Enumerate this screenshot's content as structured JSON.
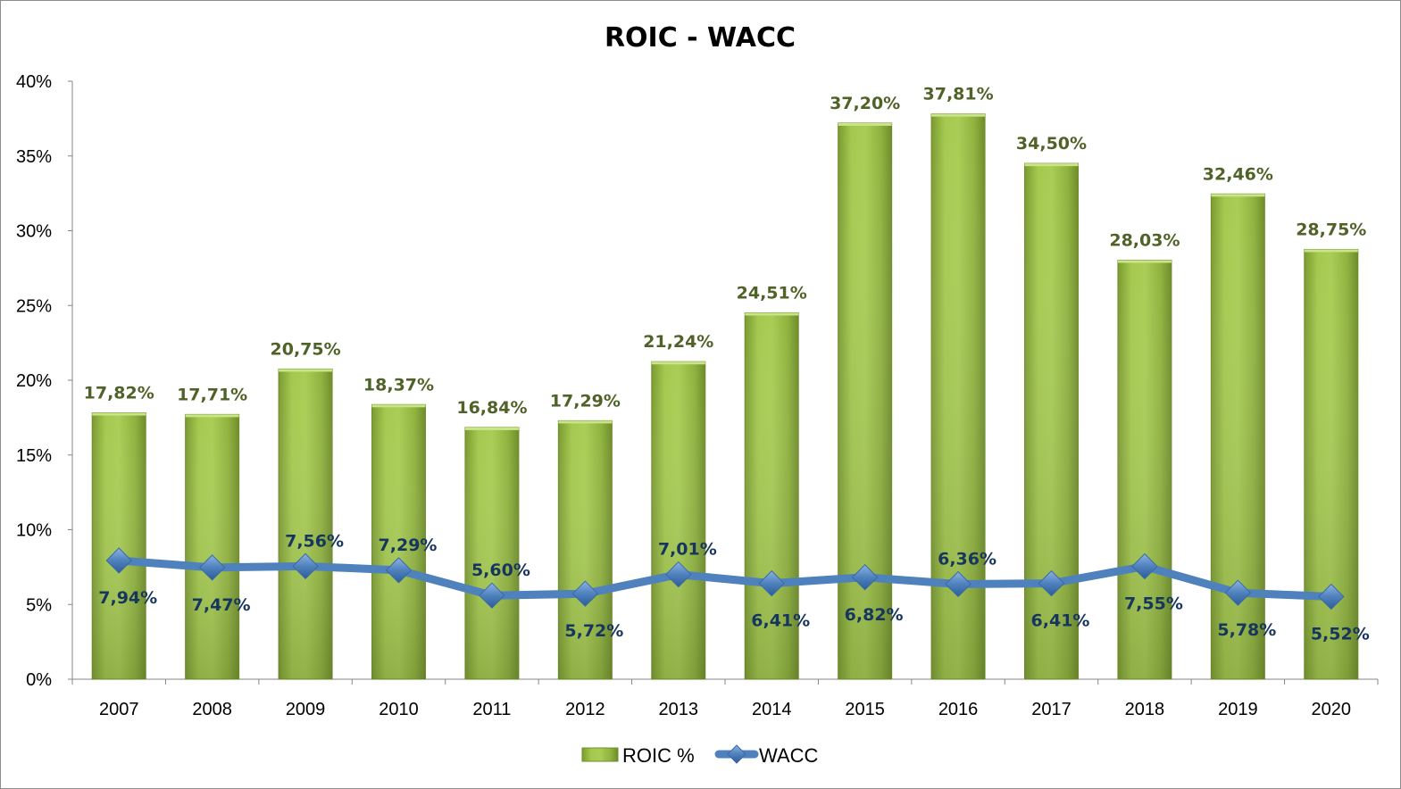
{
  "chart_data": {
    "type": "bar",
    "title": "ROIC - WACC",
    "xlabel": "",
    "ylabel": "",
    "ylim": [
      0,
      40
    ],
    "yticks": [
      "0%",
      "5%",
      "10%",
      "15%",
      "20%",
      "25%",
      "30%",
      "35%",
      "40%"
    ],
    "ytick_values": [
      0,
      5,
      10,
      15,
      20,
      25,
      30,
      35,
      40
    ],
    "grid": false,
    "legend_position": "bottom",
    "categories": [
      "2007",
      "2008",
      "2009",
      "2010",
      "2011",
      "2012",
      "2013",
      "2014",
      "2015",
      "2016",
      "2017",
      "2018",
      "2019",
      "2020"
    ],
    "series": [
      {
        "name": "ROIC %",
        "type": "bar",
        "color": "#8db43a",
        "values": [
          17.82,
          17.71,
          20.75,
          18.37,
          16.84,
          17.29,
          21.24,
          24.51,
          37.2,
          37.81,
          34.5,
          28.03,
          32.46,
          28.75
        ],
        "labels": [
          "17,82%",
          "17,71%",
          "20,75%",
          "18,37%",
          "16,84%",
          "17,29%",
          "21,24%",
          "24,51%",
          "37,20%",
          "37,81%",
          "34,50%",
          "28,03%",
          "32,46%",
          "28,75%"
        ],
        "label_color": "#4f6228"
      },
      {
        "name": "WACC",
        "type": "line",
        "color": "#4f81bd",
        "values": [
          7.94,
          7.47,
          7.56,
          7.29,
          5.6,
          5.72,
          7.01,
          6.41,
          6.82,
          6.36,
          6.41,
          7.55,
          5.78,
          5.52
        ],
        "labels": [
          "7,94%",
          "7,47%",
          "7,56%",
          "7,29%",
          "5,60%",
          "5,72%",
          "7,01%",
          "6,41%",
          "6,82%",
          "6,36%",
          "6,41%",
          "7,55%",
          "5,78%",
          "5,52%"
        ],
        "label_color": "#17365d"
      }
    ]
  }
}
